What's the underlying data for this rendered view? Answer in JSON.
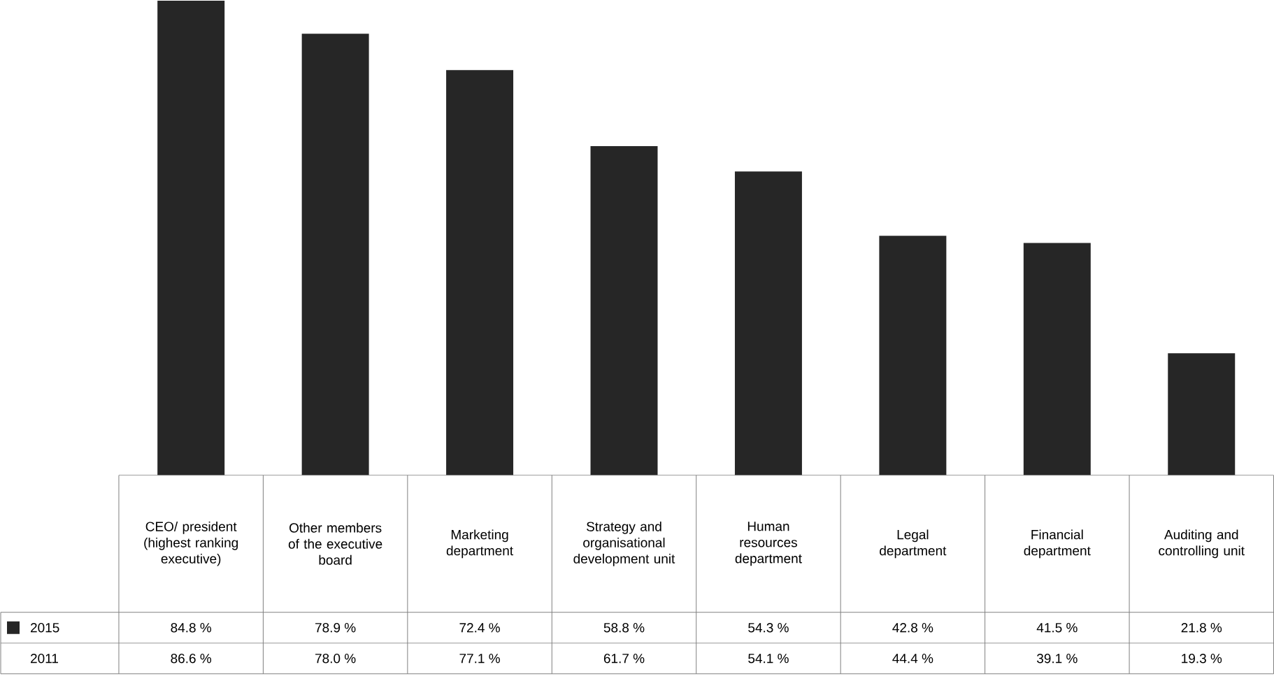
{
  "chart_data": {
    "type": "bar",
    "categories": [
      "CEO/ president (highest ranking executive)",
      "Other members of the executive board",
      "Marketing department",
      "Strategy and organisational development unit",
      "Human resources department",
      "Legal department",
      "Financial department",
      "Auditing and controlling unit"
    ],
    "series": [
      {
        "name": "2015",
        "color": "#262626",
        "values": [
          84.8,
          78.9,
          72.4,
          58.8,
          54.3,
          42.8,
          41.5,
          21.8
        ],
        "value_labels": [
          "84.8 %",
          "78.9 %",
          "72.4 %",
          "58.8 %",
          "54.3 %",
          "42.8 %",
          "41.5 %",
          "21.8 %"
        ]
      }
    ],
    "annotations": [
      "2011",
      "86.6 %",
      "78.0 %",
      "77.1 %",
      "61.7 %",
      "54.1 %",
      "44.4 %",
      "39.1 %",
      "19.3 %"
    ]
  }
}
